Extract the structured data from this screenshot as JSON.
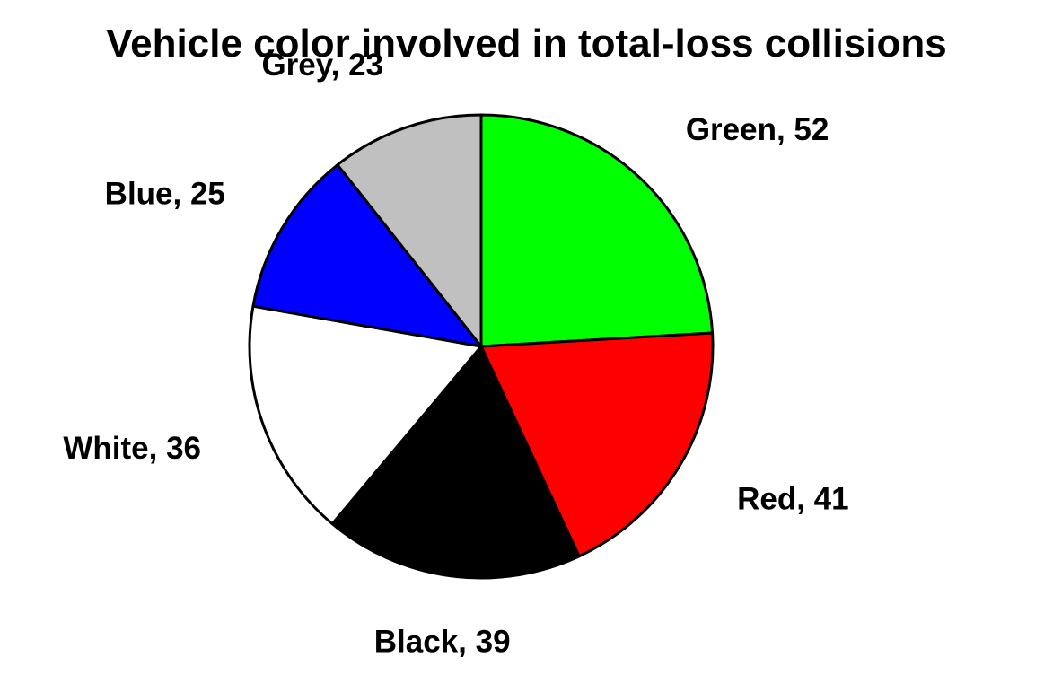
{
  "chart_data": {
    "type": "pie",
    "title": "Vehicle color involved in total-loss collisions",
    "start_angle_deg": 90,
    "direction": "clockwise",
    "slices": [
      {
        "label": "Green, 52",
        "name": "Green",
        "value": 52,
        "color": "#00ff00"
      },
      {
        "label": "Red, 41",
        "name": "Red",
        "value": 41,
        "color": "#ff0000"
      },
      {
        "label": "Black, 39",
        "name": "Black",
        "value": 39,
        "color": "#000000"
      },
      {
        "label": "White, 36",
        "name": "White",
        "value": 36,
        "color": "#ffffff"
      },
      {
        "label": "Blue, 25",
        "name": "Blue",
        "value": 25,
        "color": "#0000ff"
      },
      {
        "label": "Grey, 23",
        "name": "Grey",
        "value": 23,
        "color": "#c0c0c0"
      }
    ],
    "slice_border_color": "#000000",
    "label_color": "#000000"
  }
}
